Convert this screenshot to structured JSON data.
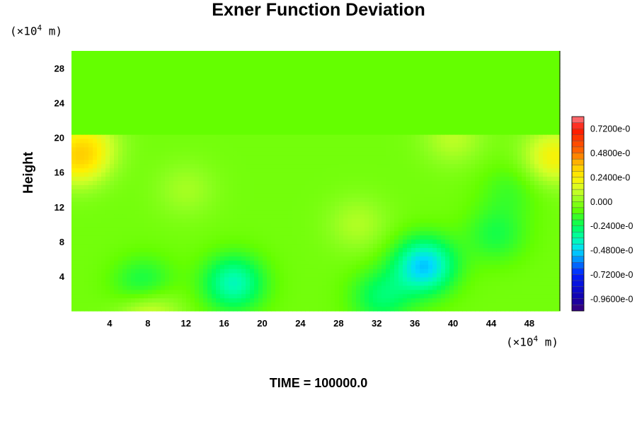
{
  "chart_data": {
    "type": "heatmap",
    "title": "Exner Function Deviation",
    "ylabel": "Height",
    "time_label": "TIME = 100000.0",
    "x_unit": {
      "prefix": "(×10",
      "exp": "4",
      "suffix": " m)"
    },
    "y_unit": {
      "prefix": "(×10",
      "exp": "4",
      "suffix": " m)"
    },
    "xlim": [
      0,
      51.2
    ],
    "ylim": [
      0,
      30
    ],
    "x_ticks": [
      "4",
      "8",
      "12",
      "16",
      "20",
      "24",
      "28",
      "32",
      "36",
      "40",
      "44",
      "48"
    ],
    "y_ticks": [
      "4",
      "8",
      "12",
      "16",
      "20",
      "24",
      "28"
    ],
    "colorbar": {
      "range": [
        -1.08e-05,
        8.4e-06
      ],
      "labels": [
        "0.7200e-0",
        "0.4800e-0",
        "0.2400e-0",
        "0.000",
        "-0.2400e-0",
        "-0.4800e-0",
        "-0.7200e-0",
        "-0.9600e-0"
      ],
      "label_values": [
        0.72,
        0.48,
        0.24,
        0.0,
        -0.24,
        -0.48,
        -0.72,
        -0.96
      ]
    },
    "field": {
      "upper_layer": {
        "y_range": [
          20.5,
          30
        ],
        "value": -0.08
      },
      "lower_background": -0.05,
      "features": [
        {
          "x": 17,
          "y": 3.2,
          "value": -0.38
        },
        {
          "x": 37,
          "y": 5.2,
          "value": -0.5
        },
        {
          "x": 7.6,
          "y": 2.6,
          "value": -0.3
        },
        {
          "x": 32.5,
          "y": 1.6,
          "value": -0.26
        },
        {
          "x": 44.5,
          "y": 8.8,
          "value": -0.2
        },
        {
          "x": 0.6,
          "y": 17.5,
          "value": 0.24
        },
        {
          "x": 50.6,
          "y": 17.8,
          "value": 0.22
        },
        {
          "x": 8,
          "y": 0.2,
          "value": 0.22
        },
        {
          "x": 2,
          "y": 19.5,
          "value": 0.1
        },
        {
          "x": 40,
          "y": 20,
          "value": 0.08
        },
        {
          "x": 30,
          "y": 10,
          "value": 0.06
        },
        {
          "x": 46,
          "y": 14,
          "value": -0.14
        },
        {
          "x": 12,
          "y": 14,
          "value": 0.04
        }
      ]
    }
  }
}
